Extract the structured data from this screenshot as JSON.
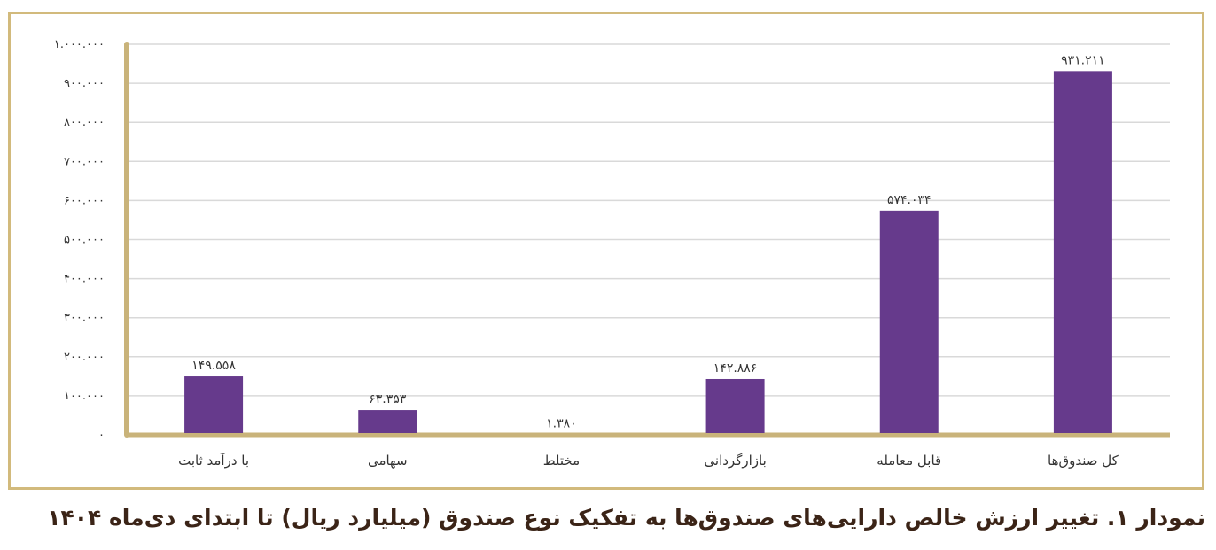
{
  "chart_data": {
    "type": "bar",
    "categories": [
      "با درآمد ثابت",
      "سهامی",
      "مختلط",
      "بازارگردانی",
      "قابل معامله",
      "کل صندوق‌ها"
    ],
    "values": [
      149558,
      63353,
      1380,
      142886,
      574034,
      931211
    ],
    "data_labels": [
      "۱۴۹.۵۵۸",
      "۶۳.۳۵۳",
      "۱.۳۸۰",
      "۱۴۲.۸۸۶",
      "۵۷۴.۰۳۴",
      "۹۳۱.۲۱۱"
    ],
    "ylim": [
      0,
      1000000
    ],
    "y_ticks": [
      0,
      100000,
      200000,
      300000,
      400000,
      500000,
      600000,
      700000,
      800000,
      900000,
      1000000
    ],
    "y_tick_labels": [
      "۰",
      "۱۰۰.۰۰۰",
      "۲۰۰.۰۰۰",
      "۳۰۰.۰۰۰",
      "۴۰۰.۰۰۰",
      "۵۰۰.۰۰۰",
      "۶۰۰.۰۰۰",
      "۷۰۰.۰۰۰",
      "۸۰۰.۰۰۰",
      "۹۰۰.۰۰۰",
      "۱.۰۰۰.۰۰۰"
    ],
    "grid": true,
    "bar_color": "#663a8c",
    "axis_color": "#c9b37a",
    "grid_color": "#d9d9d9"
  },
  "caption": "نمودار ۱. تغییر ارزش خالص دارایی‌های صندوق‌ها به تفکیک نوع صندوق (میلیارد ریال)  تا ابتدای دی‌ماه ۱۴۰۴",
  "colors": {
    "frame": "#d2ba7c",
    "caption_text": "#3b2417"
  }
}
